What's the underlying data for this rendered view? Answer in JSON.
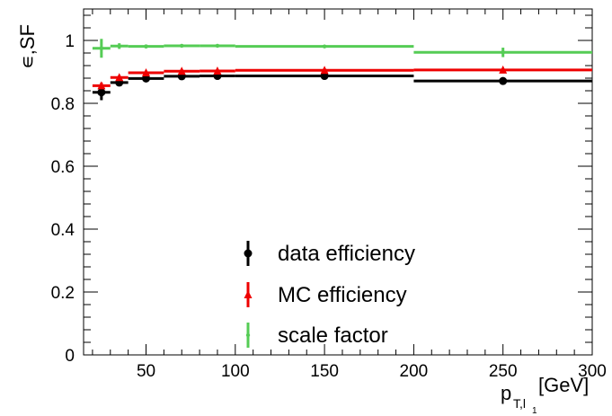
{
  "chart_data": {
    "type": "scatter",
    "xlabel": "p",
    "xlabel_sub": "T,l",
    "xlabel_subsub": "1",
    "xlabel_unit": "[GeV]",
    "ylabel": "∊,SF",
    "xlim": [
      15,
      300
    ],
    "ylim": [
      0,
      1.1
    ],
    "grid": false,
    "legend_position": "bottom-center",
    "x_ticks": [
      50,
      100,
      150,
      200,
      250,
      300
    ],
    "y_ticks": [
      0,
      0.2,
      0.4,
      0.6,
      0.8,
      1
    ],
    "y_tick_labels": [
      "0",
      "0.2",
      "0.4",
      "0.6",
      "0.8",
      "1"
    ],
    "series": [
      {
        "name": "data efficiency",
        "color": "#000000",
        "marker": "circle",
        "points": [
          {
            "x": 25,
            "xlo": 20,
            "xhi": 30,
            "y": 0.835,
            "yerr": 0.025
          },
          {
            "x": 35,
            "xlo": 30,
            "xhi": 40,
            "y": 0.866,
            "yerr": 0.008
          },
          {
            "x": 50,
            "xlo": 40,
            "xhi": 60,
            "y": 0.879,
            "yerr": 0.005
          },
          {
            "x": 70,
            "xlo": 60,
            "xhi": 80,
            "y": 0.886,
            "yerr": 0.004
          },
          {
            "x": 90,
            "xlo": 80,
            "xhi": 100,
            "y": 0.887,
            "yerr": 0.004
          },
          {
            "x": 150,
            "xlo": 100,
            "xhi": 200,
            "y": 0.887,
            "yerr": 0.003
          },
          {
            "x": 250,
            "xlo": 200,
            "xhi": 300,
            "y": 0.871,
            "yerr": 0.005
          }
        ]
      },
      {
        "name": "MC efficiency",
        "color": "#ee0000",
        "marker": "triangle",
        "points": [
          {
            "x": 25,
            "xlo": 20,
            "xhi": 30,
            "y": 0.856,
            "yerr": 0.01
          },
          {
            "x": 35,
            "xlo": 30,
            "xhi": 40,
            "y": 0.882,
            "yerr": 0.004
          },
          {
            "x": 50,
            "xlo": 40,
            "xhi": 60,
            "y": 0.897,
            "yerr": 0.003
          },
          {
            "x": 70,
            "xlo": 60,
            "xhi": 80,
            "y": 0.902,
            "yerr": 0.003
          },
          {
            "x": 90,
            "xlo": 80,
            "xhi": 100,
            "y": 0.903,
            "yerr": 0.003
          },
          {
            "x": 150,
            "xlo": 100,
            "xhi": 200,
            "y": 0.905,
            "yerr": 0.002
          },
          {
            "x": 250,
            "xlo": 200,
            "xhi": 300,
            "y": 0.906,
            "yerr": 0.003
          }
        ]
      },
      {
        "name": "scale factor",
        "color": "#55cc55",
        "marker": "small-circle",
        "points": [
          {
            "x": 25,
            "xlo": 20,
            "xhi": 30,
            "y": 0.975,
            "yerr": 0.03
          },
          {
            "x": 35,
            "xlo": 30,
            "xhi": 40,
            "y": 0.982,
            "yerr": 0.009
          },
          {
            "x": 50,
            "xlo": 40,
            "xhi": 60,
            "y": 0.981,
            "yerr": 0.006
          },
          {
            "x": 70,
            "xlo": 60,
            "xhi": 80,
            "y": 0.983,
            "yerr": 0.005
          },
          {
            "x": 90,
            "xlo": 80,
            "xhi": 100,
            "y": 0.983,
            "yerr": 0.005
          },
          {
            "x": 150,
            "xlo": 100,
            "xhi": 200,
            "y": 0.981,
            "yerr": 0.004
          },
          {
            "x": 250,
            "xlo": 200,
            "xhi": 300,
            "y": 0.962,
            "yerr": 0.015
          }
        ]
      }
    ]
  }
}
